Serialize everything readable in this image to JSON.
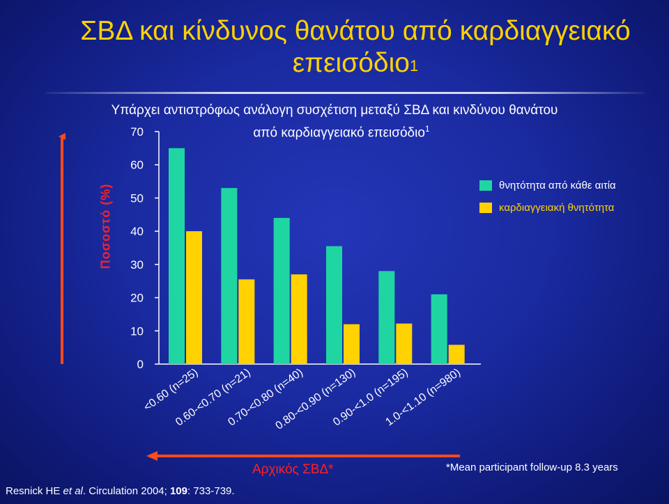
{
  "slide": {
    "title_main": "ΣΒΔ και κίνδυνος θανάτου από καρδιαγγειακό επεισόδιο",
    "title_sup": "1",
    "subtitle_line1": "Υπάρχει αντιστρόφως ανάλογη συσχέτιση μεταξύ ΣΒΔ και κινδύνου θανάτου",
    "subtitle_line2": "από καρδιαγγειακό επεισόδιο",
    "subtitle_sup": "1",
    "footnote": "*Mean participant follow-up 8.3 years",
    "citation": {
      "authors": "Resnick HE ",
      "etal": "et al",
      "journal": ". Circulation",
      "year": " 2004; ",
      "volume": "109",
      "pages": ": 733-739."
    }
  },
  "colors": {
    "all_cause": "#1fd6a2",
    "cardiovascular": "#ffd200",
    "axis_arrow": "#ff4a1a",
    "ylabel": "#ff2020"
  },
  "chart_data": {
    "type": "bar",
    "ylabel": "Ποσοστό (%)",
    "xlabel": "Αρχικός ΣΒΔ*",
    "ylim": [
      0,
      70
    ],
    "yticks": [
      0,
      10,
      20,
      30,
      40,
      50,
      60,
      70
    ],
    "grid": false,
    "legend_position": "top-right",
    "categories": [
      "<0.60 (n=25)",
      "0.60-<0.70 (n=21)",
      "0.70-<0.80 (n=40)",
      "0.80-<0.90 (n=130)",
      "0.90-<1.0 (n=195)",
      "1.0-<1.10 (n=980)"
    ],
    "series": [
      {
        "name": "θνητότητα από κάθε αιτία",
        "values": [
          65,
          53,
          44,
          35.5,
          28,
          21
        ]
      },
      {
        "name": "καρδιαγγειακή θνητότητα",
        "values": [
          40,
          25.5,
          27,
          12,
          12.2,
          5.8
        ]
      }
    ]
  }
}
